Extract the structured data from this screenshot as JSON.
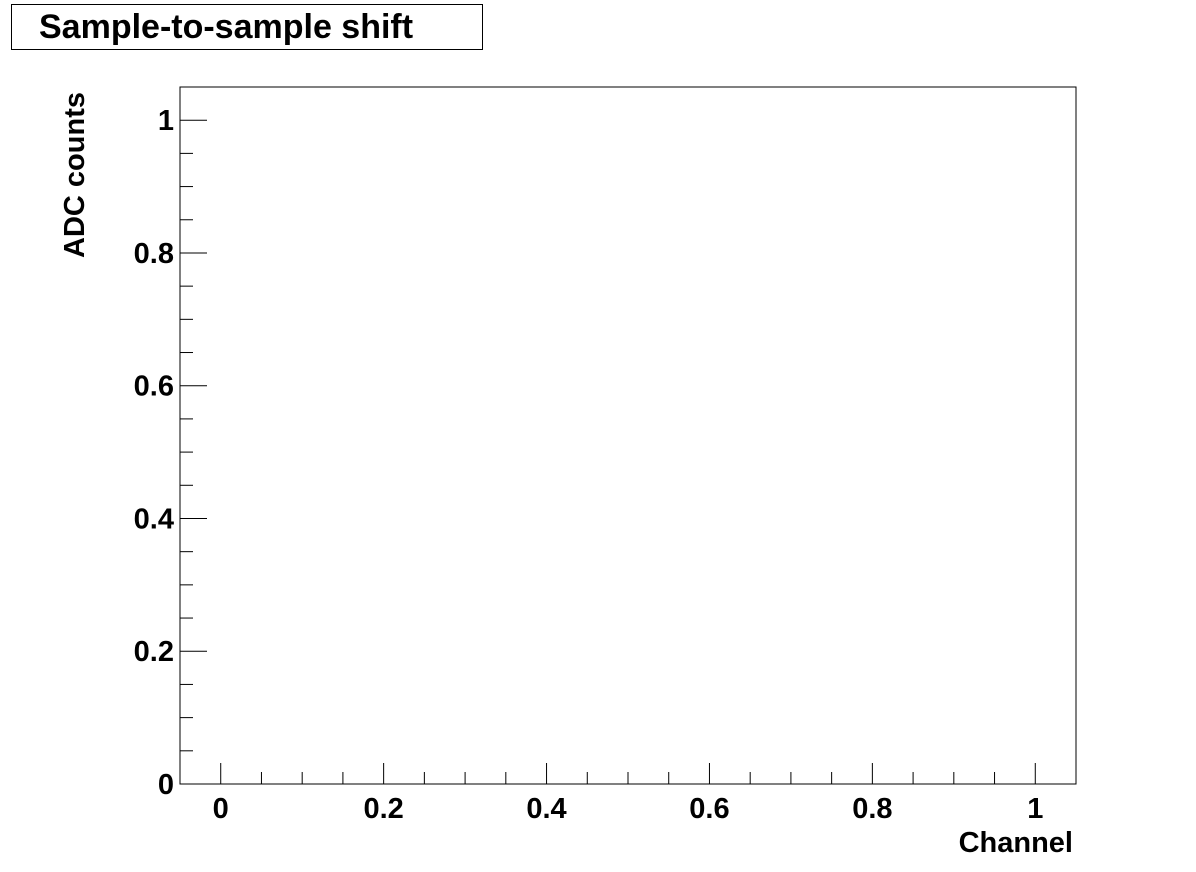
{
  "chart_data": {
    "type": "line",
    "title": "Sample-to-sample shift",
    "xlabel": "Channel",
    "ylabel": "ADC counts",
    "xlim": [
      -0.05,
      1.05
    ],
    "ylim": [
      0,
      1.05
    ],
    "x_ticks": [
      0,
      0.2,
      0.4,
      0.6,
      0.8,
      1
    ],
    "x_tick_labels": [
      "0",
      "0.2",
      "0.4",
      "0.6",
      "0.8",
      "1"
    ],
    "x_minor_step": 0.05,
    "y_ticks": [
      0,
      0.2,
      0.4,
      0.6,
      0.8,
      1
    ],
    "y_tick_labels": [
      "0",
      "0.2",
      "0.4",
      "0.6",
      "0.8",
      "1"
    ],
    "y_minor_step": 0.05,
    "grid": false,
    "series": []
  }
}
